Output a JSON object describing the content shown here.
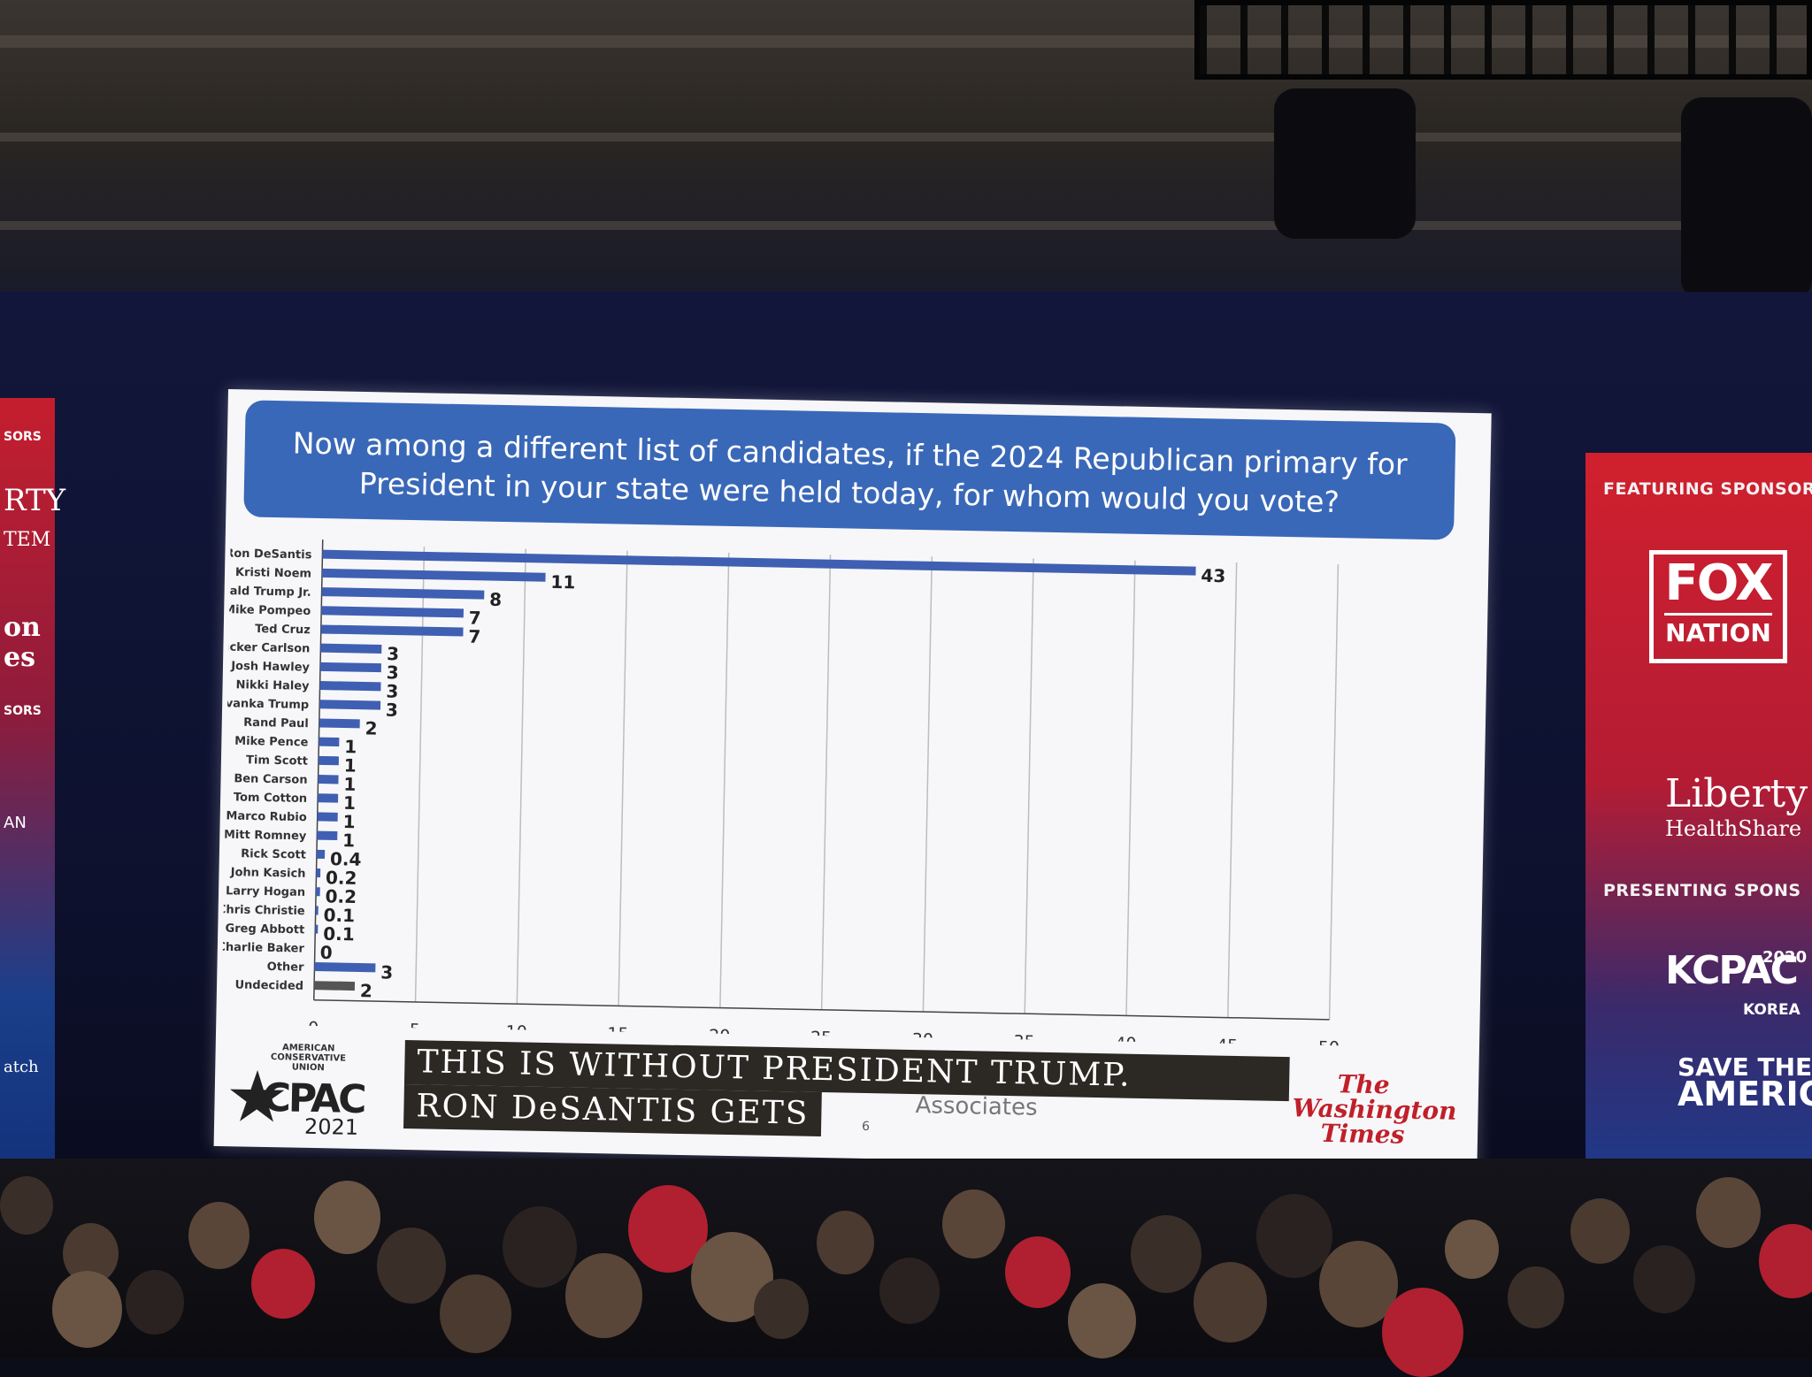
{
  "slide": {
    "title_line1": "Now among a different list of candidates, if the 2024 Republican primary for",
    "title_line2": "President in your state were held today, for whom would you vote?",
    "lower_third_line1": "THIS IS WITHOUT PRESIDENT TRUMP.",
    "lower_third_line2": "RON DeSANTIS GETS",
    "source_fragment": "Associates",
    "page_number": "6",
    "cpac": {
      "org_text": "AMERICAN CONSERVATIVE UNION",
      "word": "CPAC",
      "year": "2021"
    },
    "publisher_logo": "The Washington Times"
  },
  "banners": {
    "left_fragments": [
      "SORS",
      "RTY",
      "TEM",
      "on",
      "es",
      "SORS",
      "AN",
      "atch"
    ],
    "right": {
      "featuring_label": "FEATURING SPONSOR",
      "fox_top": "FOX",
      "fox_bottom": "NATION",
      "liberty_line1": "Liberty",
      "liberty_line2": "HealthShare",
      "presenting_label": "PRESENTING SPONS",
      "kcpac_year": "2020",
      "kcpac_word": "KCPAC",
      "kcpac_sub": "KOREA",
      "save_line1": "SAVE THE",
      "save_line2": "AMERICAN"
    }
  },
  "colors": {
    "bar_blue": "#3f5fb2",
    "bar_gray": "#555555",
    "title_blue": "#3a68b8",
    "banner_red": "#c51e2e"
  },
  "chart_data": {
    "type": "bar",
    "orientation": "horizontal",
    "categories": [
      "Ron DeSantis",
      "Kristi Noem",
      "Donald Trump Jr.",
      "Mike Pompeo",
      "Ted Cruz",
      "Tucker Carlson",
      "Josh Hawley",
      "Nikki Haley",
      "Ivanka Trump",
      "Rand Paul",
      "Mike Pence",
      "Tim Scott",
      "Ben Carson",
      "Tom Cotton",
      "Marco Rubio",
      "Mitt Romney",
      "Rick Scott",
      "John Kasich",
      "Larry Hogan",
      "Chris Christie",
      "Greg Abbott",
      "Charlie Baker",
      "Other",
      "Undecided"
    ],
    "values": [
      43,
      11,
      8,
      7,
      7,
      3,
      3,
      3,
      3,
      2,
      1,
      1,
      1,
      1,
      1,
      1,
      0.4,
      0.2,
      0.2,
      0.1,
      0.1,
      0,
      3,
      2
    ],
    "value_labels": [
      "43",
      "11",
      "8",
      "7",
      "7",
      "3",
      "3",
      "3",
      "3",
      "2",
      "1",
      "1",
      "1",
      "1",
      "1",
      "1",
      "0.4",
      "0.2",
      "0.2",
      "0.1",
      "0.1",
      "0",
      "3",
      "2"
    ],
    "bar_colors": [
      "blue",
      "blue",
      "blue",
      "blue",
      "blue",
      "blue",
      "blue",
      "blue",
      "blue",
      "blue",
      "blue",
      "blue",
      "blue",
      "blue",
      "blue",
      "blue",
      "blue",
      "blue",
      "blue",
      "blue",
      "blue",
      "blue",
      "blue",
      "gray"
    ],
    "xlim": [
      0,
      50
    ],
    "x_ticks": [
      "0",
      "5",
      "10",
      "15",
      "20",
      "25",
      "30",
      "35",
      "40",
      "45",
      "50"
    ],
    "grid": "vertical",
    "legend": "none"
  }
}
